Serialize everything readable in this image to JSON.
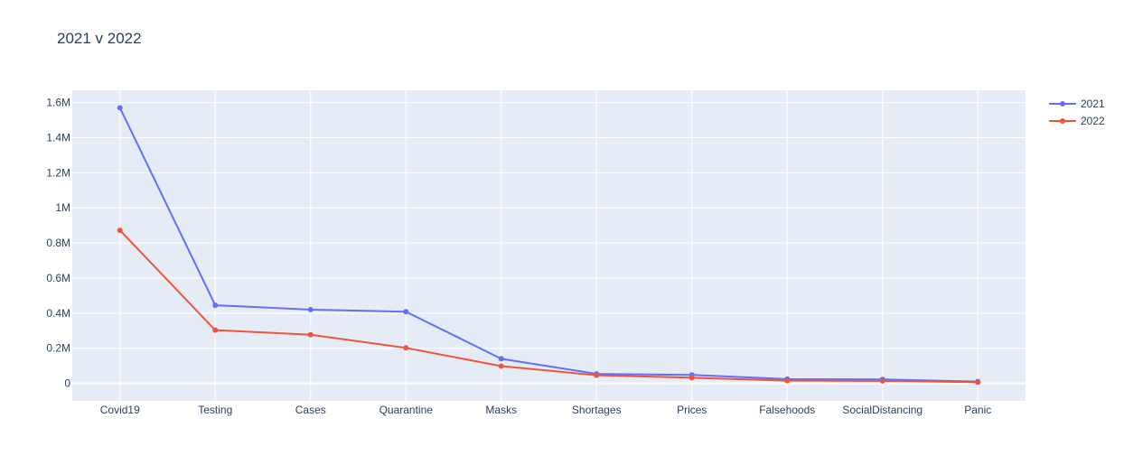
{
  "chart_data": {
    "type": "line",
    "title": "2021 v 2022",
    "xlabel": "",
    "ylabel": "",
    "categories": [
      "Covid19",
      "Testing",
      "Cases",
      "Quarantine",
      "Masks",
      "Shortages",
      "Prices",
      "Falsehoods",
      "SocialDistancing",
      "Panic"
    ],
    "ylim": [
      -100000,
      1670000
    ],
    "y_ticks": [
      0,
      200000,
      400000,
      600000,
      800000,
      1000000,
      1200000,
      1400000,
      1600000
    ],
    "y_tick_labels": [
      "0",
      "0.2M",
      "0.4M",
      "0.6M",
      "0.8M",
      "1M",
      "1.2M",
      "1.4M",
      "1.6M"
    ],
    "grid": true,
    "legend": "top-right",
    "series": [
      {
        "name": "2021",
        "color": "#636efa",
        "values": [
          1570000,
          445000,
          420000,
          408000,
          140000,
          54000,
          48000,
          24000,
          22000,
          10000
        ]
      },
      {
        "name": "2022",
        "color": "#ef553b",
        "values": [
          872000,
          303000,
          277000,
          202000,
          98000,
          46000,
          32000,
          15000,
          14000,
          6000
        ]
      }
    ]
  }
}
